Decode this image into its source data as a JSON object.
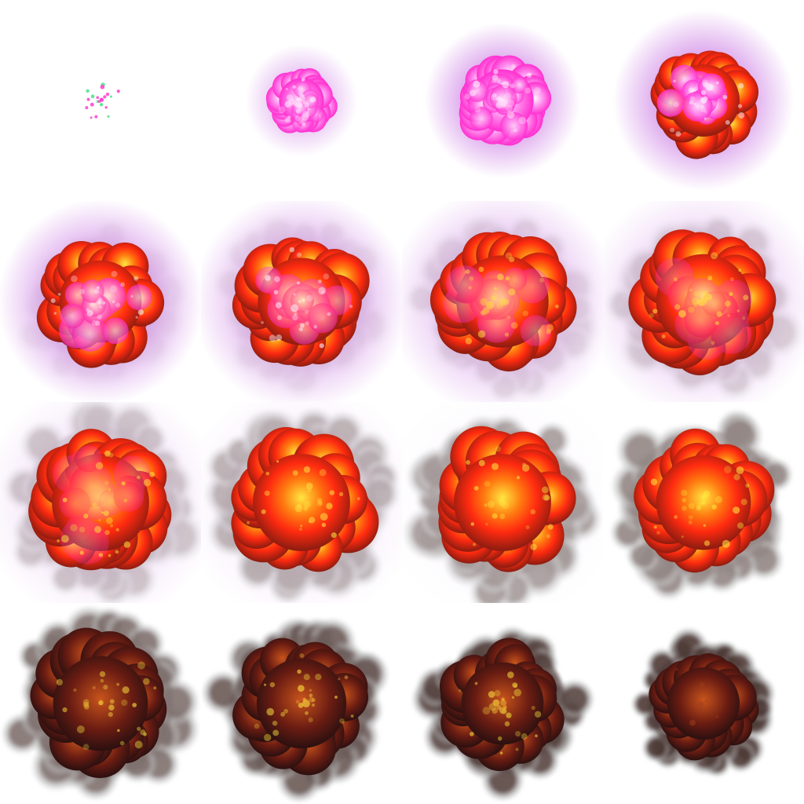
{
  "sprite_sheet": {
    "name": "explosion",
    "columns": 4,
    "rows": 4,
    "frames": [
      {
        "index": 1,
        "phase": "spark",
        "glow": 0.0,
        "fire": 0.0,
        "smoke": 0.0,
        "white_hot": 0.0,
        "scale": 0.18
      },
      {
        "index": 2,
        "phase": "ignite",
        "glow": 0.55,
        "fire": 0.0,
        "smoke": 0.0,
        "white_hot": 0.45,
        "scale": 0.36
      },
      {
        "index": 3,
        "phase": "flash",
        "glow": 0.85,
        "fire": 0.0,
        "smoke": 0.0,
        "white_hot": 0.7,
        "scale": 0.5
      },
      {
        "index": 4,
        "phase": "flash",
        "glow": 0.9,
        "fire": 0.1,
        "smoke": 0.0,
        "white_hot": 0.75,
        "scale": 0.58
      },
      {
        "index": 5,
        "phase": "burst",
        "glow": 0.85,
        "fire": 0.35,
        "smoke": 0.05,
        "white_hot": 0.55,
        "scale": 0.66
      },
      {
        "index": 6,
        "phase": "burst",
        "glow": 0.7,
        "fire": 0.55,
        "smoke": 0.08,
        "white_hot": 0.35,
        "scale": 0.7
      },
      {
        "index": 7,
        "phase": "fireball",
        "glow": 0.55,
        "fire": 0.75,
        "smoke": 0.12,
        "white_hot": 0.2,
        "scale": 0.74
      },
      {
        "index": 8,
        "phase": "fireball",
        "glow": 0.4,
        "fire": 0.9,
        "smoke": 0.18,
        "white_hot": 0.1,
        "scale": 0.76
      },
      {
        "index": 9,
        "phase": "fireball",
        "glow": 0.25,
        "fire": 0.95,
        "smoke": 0.25,
        "white_hot": 0.05,
        "scale": 0.78
      },
      {
        "index": 10,
        "phase": "fireball",
        "glow": 0.15,
        "fire": 0.9,
        "smoke": 0.35,
        "white_hot": 0.0,
        "scale": 0.78
      },
      {
        "index": 11,
        "phase": "cooling",
        "glow": 0.05,
        "fire": 0.8,
        "smoke": 0.45,
        "white_hot": 0.0,
        "scale": 0.78
      },
      {
        "index": 12,
        "phase": "cooling",
        "glow": 0.0,
        "fire": 0.7,
        "smoke": 0.55,
        "white_hot": 0.0,
        "scale": 0.76
      },
      {
        "index": 13,
        "phase": "smoke",
        "glow": 0.0,
        "fire": 0.55,
        "smoke": 0.65,
        "white_hot": 0.0,
        "scale": 0.76
      },
      {
        "index": 14,
        "phase": "smoke",
        "glow": 0.0,
        "fire": 0.4,
        "smoke": 0.75,
        "white_hot": 0.0,
        "scale": 0.72
      },
      {
        "index": 15,
        "phase": "smoke",
        "glow": 0.0,
        "fire": 0.25,
        "smoke": 0.85,
        "white_hot": 0.0,
        "scale": 0.66
      },
      {
        "index": 16,
        "phase": "fade",
        "glow": 0.0,
        "fire": 0.1,
        "smoke": 0.9,
        "white_hot": 0.0,
        "scale": 0.58
      }
    ]
  },
  "colors": {
    "background": "#ffffff",
    "glow": "#b23ad6",
    "magenta": "#ff2fd0",
    "white_hot": "#fff6ff",
    "fire_red": "#ff2a10",
    "fire_orange": "#ff7a10",
    "fire_yellow": "#ffe640",
    "ember": "#8a1c10",
    "smoke_dark": "#3a2420",
    "smoke_light": "#9a9a9a",
    "spark_pink": "#ff3fd0",
    "spark_green": "#4ee08a"
  }
}
